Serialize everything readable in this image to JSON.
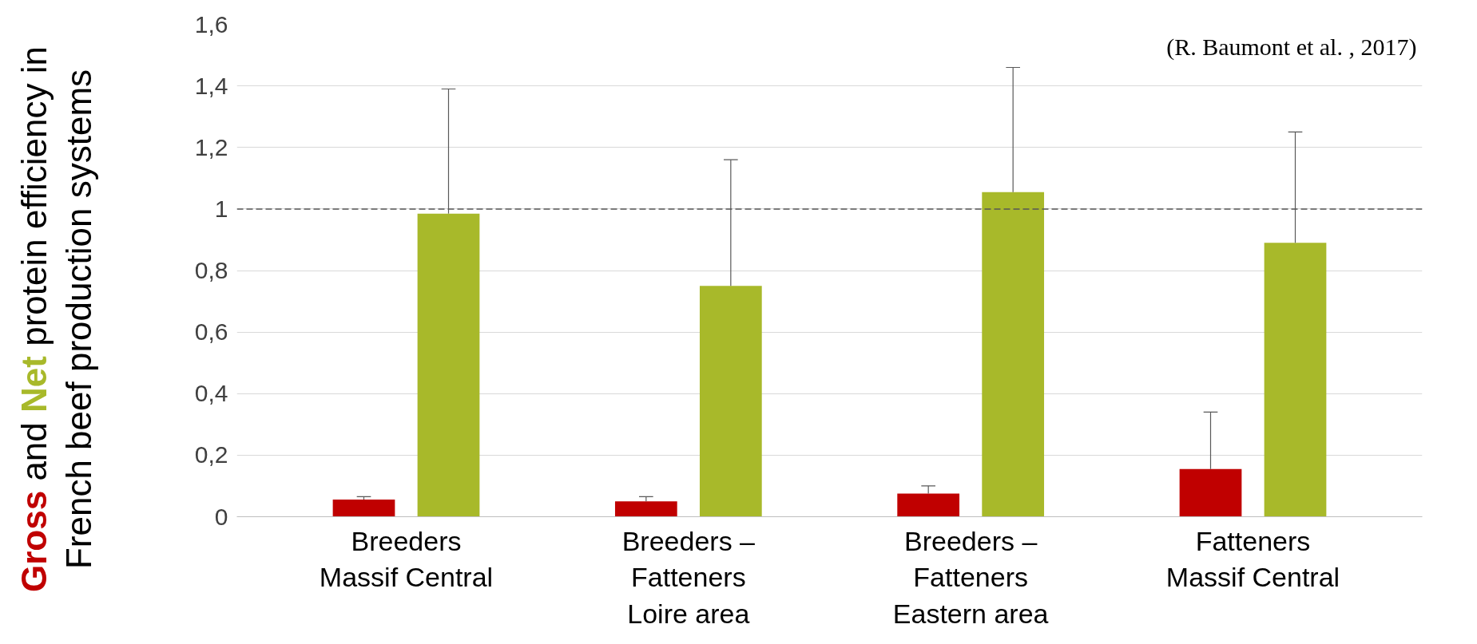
{
  "chart_data": {
    "type": "bar",
    "ylabel": "Gross and Net protein efficiency in French beef production systems",
    "categories": [
      "Breeders\nMassif Central",
      "Breeders –\nFatteners\nLoire area",
      "Breeders –\nFatteners\nEastern area",
      "Fatteners\nMassif Central"
    ],
    "series": [
      {
        "color": "#c00000",
        "values": [
          0.056,
          0.05,
          0.075,
          0.155
        ],
        "errors": [
          [
            0.056,
            0.065
          ],
          [
            0.05,
            0.065
          ],
          [
            0.075,
            0.1
          ],
          [
            0.155,
            0.34
          ]
        ]
      },
      {
        "color": "#a8b92a",
        "values": [
          0.985,
          0.75,
          1.055,
          0.89
        ],
        "errors": [
          [
            0.985,
            1.39
          ],
          [
            0.75,
            1.16
          ],
          [
            1.055,
            1.46
          ],
          [
            0.89,
            1.25
          ]
        ]
      }
    ],
    "ylim": [
      0,
      1.6
    ],
    "yticks": [
      0,
      {
        "value": 0.2,
        "label": "0,2"
      },
      {
        "value": 0.4,
        "label": "0,4"
      },
      {
        "value": 0.6,
        "label": "0,6"
      },
      {
        "value": 0.8,
        "label": "0,8"
      },
      1,
      {
        "value": 1.2,
        "label": "1,2"
      },
      {
        "value": 1.4,
        "label": "1,4"
      },
      {
        "value": 1.6,
        "label": "1,6"
      }
    ],
    "grid": "y",
    "ref_lines": [
      {
        "axis": "y",
        "value": 1,
        "label": null,
        "color": "#555555",
        "line_style": "dashed"
      }
    ],
    "annotations": [
      "(R. Baumont et al. , 2017)"
    ]
  }
}
